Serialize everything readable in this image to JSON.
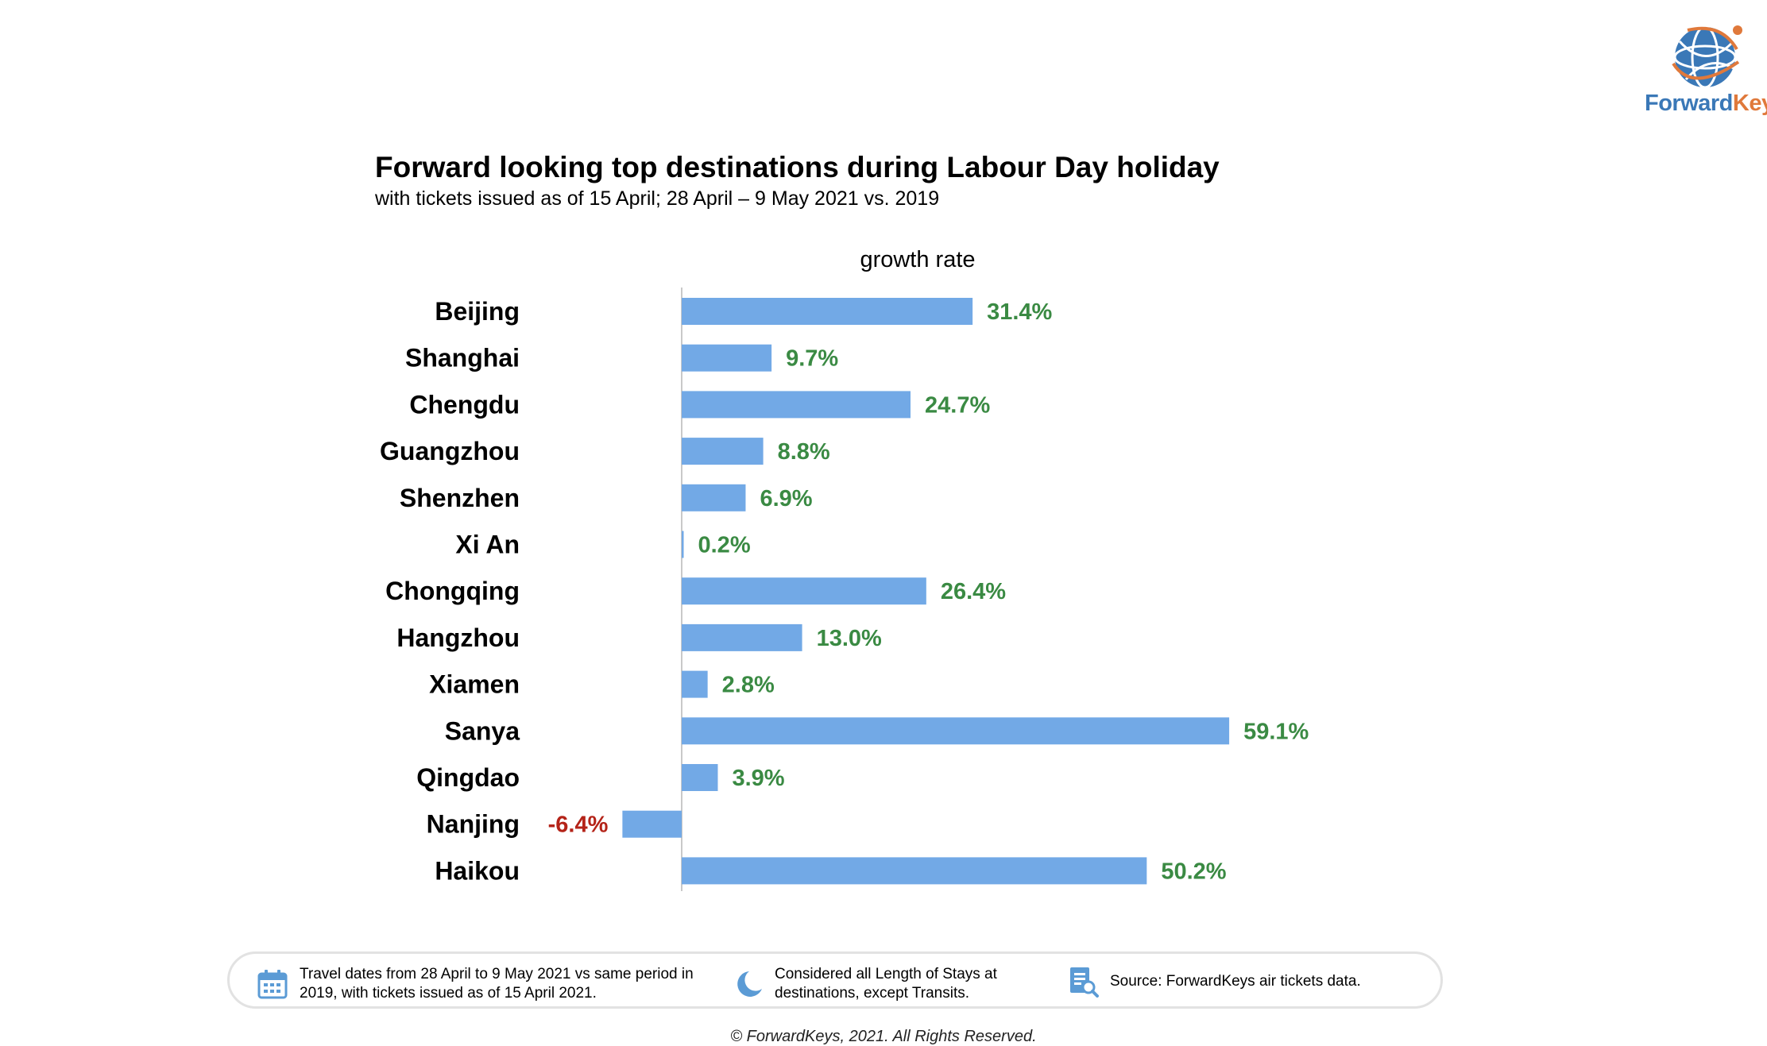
{
  "logo": {
    "word_part1": "Forward",
    "word_part2": "Keys",
    "icon": "globe-icon",
    "color_blue": "#3a78b7",
    "color_orange": "#e0793b"
  },
  "chart_data": {
    "type": "bar",
    "orientation": "horizontal",
    "title": "Forward looking top destinations during Labour Day holiday",
    "subtitle": "with tickets issued as of 15 April; 28 April – 9 May 2021 vs. 2019",
    "series": [
      {
        "name": "growth rate",
        "values": [
          31.4,
          9.7,
          24.7,
          8.8,
          6.9,
          0.2,
          26.4,
          13.0,
          2.8,
          59.1,
          3.9,
          -6.4,
          50.2
        ]
      }
    ],
    "categories": [
      "Beijing",
      "Shanghai",
      "Chengdu",
      "Guangzhou",
      "Shenzhen",
      "Xi An",
      "Chongqing",
      "Hangzhou",
      "Xiamen",
      "Sanya",
      "Qingdao",
      "Nanjing",
      "Haikou"
    ],
    "value_labels": [
      "31.4%",
      "9.7%",
      "24.7%",
      "8.8%",
      "6.9%",
      "0.2%",
      "26.4%",
      "13.0%",
      "2.8%",
      "59.1%",
      "3.9%",
      "-6.4%",
      "50.2%"
    ],
    "unit": "%",
    "bar_color": "#72a9e6",
    "positive_label_color": "#3a8a43",
    "negative_label_color": "#b42318",
    "axis_line_color": "#c9c9c9",
    "grid": false,
    "legend": "none"
  },
  "footer": {
    "notes": [
      {
        "icon": "calendar-icon",
        "text": "Travel dates from 28 April to 9 May 2021 vs same period in\n2019, with tickets issued as of 15 April 2021."
      },
      {
        "icon": "moon-star-icon",
        "text": "Considered all Length of Stays at\ndestinations, except Transits."
      },
      {
        "icon": "document-search-icon",
        "text": "Source: ForwardKeys air tickets data."
      }
    ],
    "icon_color": "#5b9bd5",
    "copyright": "© ForwardKeys, 2021. All Rights Reserved."
  }
}
